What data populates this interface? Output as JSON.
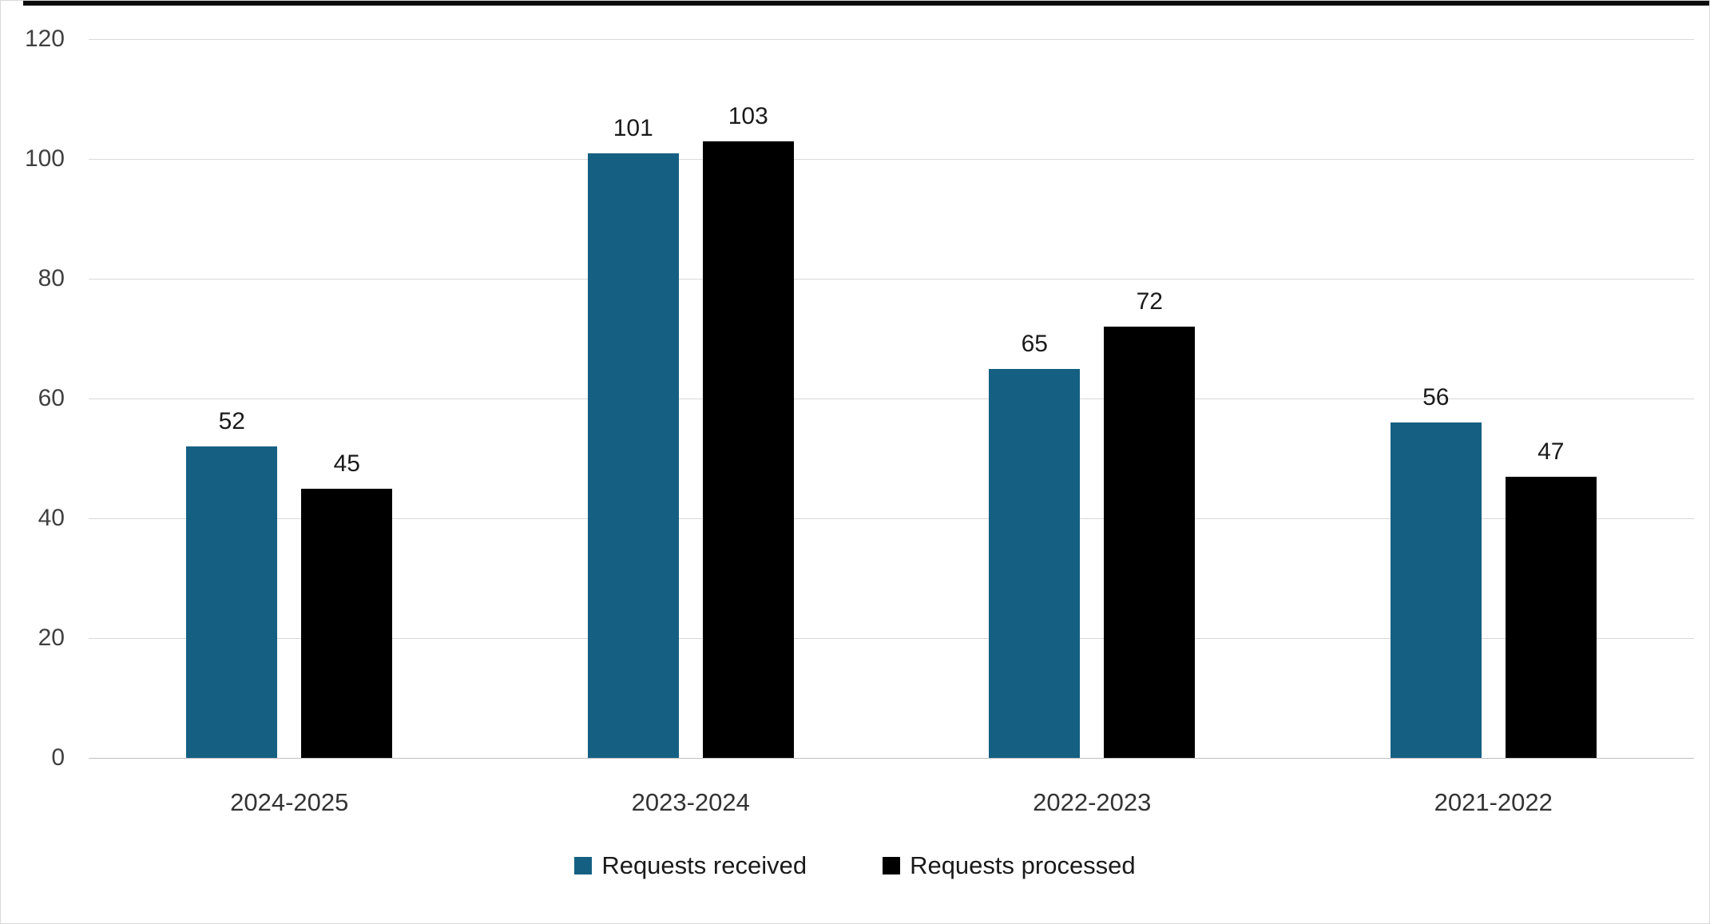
{
  "chart_data": {
    "type": "bar",
    "categories": [
      "2024-2025",
      "2023-2024",
      "2022-2023",
      "2021-2022"
    ],
    "series": [
      {
        "name": "Requests received",
        "color": "#156082",
        "values": [
          52,
          101,
          65,
          56
        ]
      },
      {
        "name": "Requests processed",
        "color": "#000000",
        "values": [
          45,
          103,
          72,
          47
        ]
      }
    ],
    "title": "",
    "xlabel": "",
    "ylabel": "",
    "ylim": [
      0,
      120
    ],
    "yticks": [
      0,
      20,
      40,
      60,
      80,
      100,
      120
    ],
    "grid": true,
    "legend_position": "bottom"
  },
  "colors": {
    "background": "#ffffff",
    "border": "#d9d9d9",
    "gridline": "#d9d9d9",
    "zero_line": "#bfbfbf",
    "axis_text": "#404040",
    "label_text": "#1a1a1a"
  }
}
